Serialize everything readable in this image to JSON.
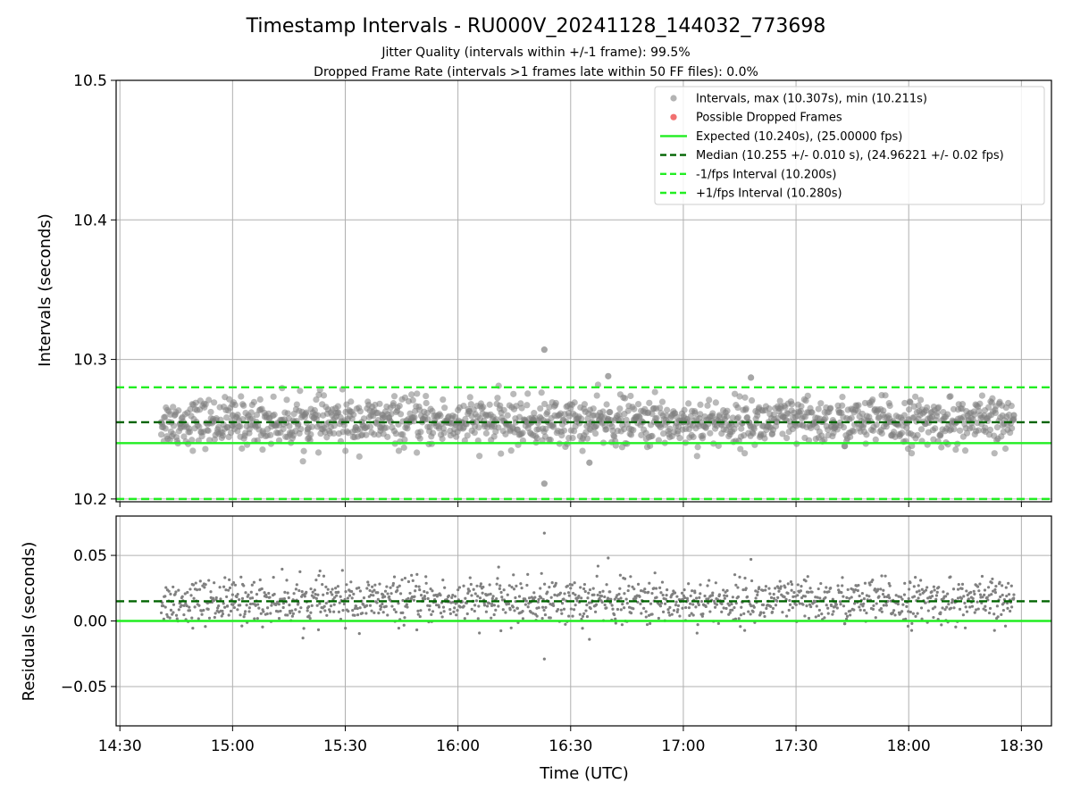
{
  "chart_data": [
    {
      "type": "scatter",
      "title": "Timestamp Intervals - RU000V_20241128_144032_773698",
      "subtitle_lines": [
        "Jitter Quality (intervals within +/-1 frame): 99.5%",
        "Dropped Frame Rate (intervals >1 frames late within 50 FF files): 0.0%"
      ],
      "xlabel": "",
      "ylabel": "Intervals (seconds)",
      "xlim": [
        "14:29",
        "18:38"
      ],
      "ylim": [
        10.198,
        10.5
      ],
      "yticks": [
        "10.2",
        "10.3",
        "10.4",
        "10.5"
      ],
      "grid": true,
      "legend_placement": "top-right",
      "legend": [
        "Intervals, max (10.307s), min (10.211s)",
        "Possible Dropped Frames",
        "Expected (10.240s), (25.00000 fps)",
        "Median (10.255 +/- 0.010 s), (24.96221 +/- 0.02 fps)",
        "-1/fps Interval (10.200s)",
        "+1/fps Interval (10.280s)"
      ],
      "reference_lines": {
        "expected": 10.24,
        "median": 10.255,
        "minus_one_frame": 10.2,
        "plus_one_frame": 10.28
      },
      "series": [
        {
          "name": "Intervals, max (10.307s), min (10.211s)",
          "x": [
            "14:41",
            "15:00",
            "15:20",
            "15:40",
            "16:00",
            "16:20",
            "16:23",
            "16:23",
            "16:35",
            "16:40",
            "17:00",
            "17:18",
            "17:40",
            "18:00",
            "18:28"
          ],
          "y": [
            10.255,
            10.26,
            10.25,
            10.258,
            10.255,
            10.257,
            10.307,
            10.211,
            10.226,
            10.288,
            10.255,
            10.287,
            10.255,
            10.257,
            10.26
          ]
        },
        {
          "name": "Possible Dropped Frames",
          "x": [],
          "y": []
        }
      ]
    },
    {
      "type": "scatter",
      "title": "",
      "xlabel": "Time (UTC)",
      "ylabel": "Residuals (seconds)",
      "xlim": [
        "14:29",
        "18:38"
      ],
      "ylim": [
        -0.08,
        0.08
      ],
      "xticks": [
        "14:30",
        "15:00",
        "15:30",
        "16:00",
        "16:30",
        "17:00",
        "17:30",
        "18:00",
        "18:30"
      ],
      "yticks": [
        "−0.05",
        "0.00",
        "0.05"
      ],
      "grid": true,
      "reference_lines": {
        "zero": 0.0,
        "median": 0.015
      },
      "series": [
        {
          "name": "",
          "x": [
            "14:41",
            "15:00",
            "15:20",
            "15:40",
            "16:00",
            "16:20",
            "16:23",
            "16:23",
            "16:35",
            "16:40",
            "17:00",
            "17:18",
            "17:40",
            "18:00",
            "18:28"
          ],
          "y": [
            0.015,
            0.02,
            0.01,
            0.018,
            0.015,
            0.017,
            0.067,
            -0.029,
            -0.014,
            0.048,
            0.015,
            0.047,
            0.015,
            0.017,
            0.02
          ]
        }
      ]
    }
  ],
  "colors": {
    "points": "#808080",
    "dropped": "#f06060",
    "expected": "#22ee22",
    "median": "#006400",
    "fps_bounds": "#22ee22",
    "grid": "#b0b0b0"
  }
}
